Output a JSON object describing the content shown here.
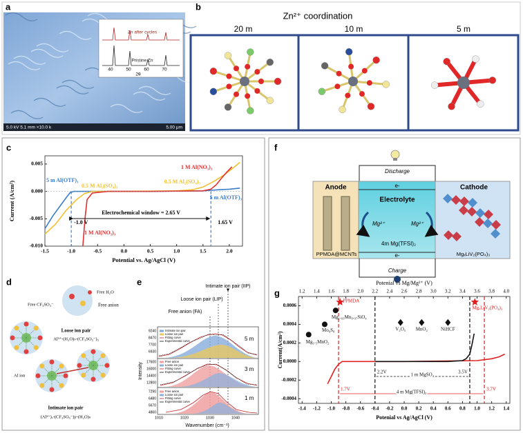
{
  "panel_labels": [
    "a",
    "b",
    "c",
    "d",
    "e",
    "f",
    "g"
  ],
  "panel_a": {
    "info_bar": "5.0 kV 5.1 mm ×10.0 k",
    "scale_bar": "5.00 μm",
    "inset_labels": [
      "Zn after cycles",
      "Pristine Zn"
    ],
    "inset_xticks": [
      "40",
      "50",
      "60",
      "70"
    ],
    "inset_xlabel": "2θ"
  },
  "panel_b": {
    "title": "Zn²⁺ coordination",
    "columns": [
      "20 m",
      "10 m",
      "5 m"
    ]
  },
  "panel_d": {
    "free_h2o": "Free H₂O",
    "free_anion_label": "Free CF₃SO₃⁻",
    "free_anion": "Free anion",
    "loose_title": "Loose ion pair",
    "loose_formula": "Al³⁺-(H₂O)ₙ-(CF₃SO₃⁻)₃",
    "al_ion": "Al ion",
    "intimate_title": "Intimate ion pair",
    "intimate_formula": "(Al³⁺)ₓ-(CF₃SO₃⁻)y-(H₂O)ₙ"
  },
  "panel_e": {
    "peaks": [
      "Intimate ion pair (IIP)",
      "Loose ion pair (LIP)",
      "Free anion (FA)"
    ],
    "ylabel": "Intensity",
    "xlabel": "Wavenumber (cm⁻¹)",
    "xticks": [
      "1010",
      "1020",
      "1030",
      "1040"
    ],
    "subplots": [
      {
        "label": "5 m",
        "yticks": [
          "9240",
          "8470",
          "7700",
          "6930"
        ],
        "legend": [
          "Intimate ion pair",
          "Loose ion pair",
          "Fitting curve",
          "Experimental curve"
        ]
      },
      {
        "label": "3 m",
        "yticks": [
          "17600",
          "16000",
          "14400",
          "12800"
        ],
        "legend": [
          "Free anion",
          "Loose ion pair",
          "Fitting curve",
          "Experimental curve"
        ]
      },
      {
        "label": "1 m",
        "yticks": [
          "7290",
          "6480",
          "5670",
          "4860"
        ],
        "legend": [
          "Free anion",
          "Loose ion pair",
          "Fitting curve",
          "Experimental curve"
        ]
      }
    ]
  },
  "panel_f": {
    "discharge": "Discharge",
    "electron_top": "e-",
    "anode": "Anode",
    "electrolyte": "Electrolyte",
    "cathode": "Cathode",
    "ion_left": "Mg²⁺",
    "ion_right": "Mg²⁺",
    "electrolyte_name": "4m Mg(TFSI)₂",
    "anode_material": "PPMDA@MCNTs",
    "cathode_material": "MgₓLiV₂(PO₄)₃",
    "electron_bottom": "e-",
    "charge": "Charge"
  },
  "chart_data": [
    {
      "type": "line",
      "xlabel": "Potential vs. Ag/AgCl (V)",
      "ylabel": "Current (A/cm²)",
      "xlim": [
        -1.5,
        2.25
      ],
      "ylim": [
        -0.01,
        0.0065
      ],
      "xticks": [
        {
          "value": -1.5,
          "label": "-1.5"
        },
        {
          "value": -1.0,
          "label": "-1.0"
        },
        -0.5,
        {
          "value": 0,
          "label": "0.0"
        },
        0.5,
        {
          "value": 1.0,
          "label": "1.0"
        },
        1.5,
        {
          "value": 2.0,
          "label": "2.0"
        }
      ],
      "yticks": [
        0.005,
        {
          "value": 0,
          "label": "0.000"
        },
        -0.005,
        {
          "value": -0.01,
          "label": "-0.010"
        }
      ],
      "series": [
        {
          "name": "5 m Al(OTF)₃",
          "color": "#3a7cc9",
          "x": [
            -1.5,
            -1.35,
            -1.2,
            -1.1,
            -1.02,
            -0.95,
            -0.5,
            0.5,
            1.5,
            1.65,
            1.8,
            2.0,
            2.2
          ],
          "values": [
            -0.0068,
            -0.0045,
            -0.0025,
            -0.0012,
            -0.0002,
            0,
            0,
            0,
            0.0001,
            0.0002,
            0.0003,
            0.0004,
            0.0006
          ]
        },
        {
          "name": "0.5 M Al₂(SO₄)₃",
          "color": "#f0c030",
          "x": [
            -1.5,
            -1.3,
            -1.1,
            -0.9,
            -0.75,
            -0.6,
            0,
            1.0,
            1.3,
            1.5,
            1.7,
            1.9,
            2.1,
            2.2
          ],
          "values": [
            -0.0078,
            -0.006,
            -0.0035,
            -0.0015,
            -0.0004,
            0,
            0,
            0.0001,
            0.0003,
            0.0008,
            0.0018,
            0.003,
            0.0045,
            0.0053
          ]
        },
        {
          "name": "1 M Al(NO₃)₃",
          "color": "#e03030",
          "x": [
            -0.78,
            -0.74,
            -0.7,
            -0.6,
            -0.3,
            0.5,
            1.5,
            1.65,
            1.75,
            1.85,
            1.95,
            2.05
          ],
          "values": [
            -0.01,
            -0.005,
            -0.0015,
            -0.0003,
            0,
            0,
            0.0001,
            0.0004,
            0.0012,
            0.0024,
            0.0035,
            0.0045
          ]
        }
      ],
      "vlines": [
        {
          "x": -1.0,
          "label": "-1.0 V"
        },
        {
          "x": 1.65,
          "label": "1.65 V"
        }
      ],
      "annotation": "Electrochemical window = 2.65 V"
    },
    {
      "type": "line",
      "xlabel": "Potenial vs Ag/AgCl (V)",
      "x2label": "Potenial vs Mg/Mg²⁺ (V)",
      "ylabel": "Current(A/cm²)",
      "xlim": [
        -1.45,
        1.45
      ],
      "x2lim": [
        1.15,
        4.05
      ],
      "ylim": [
        -0.00045,
        0.0007
      ],
      "xticks": [
        -1.4,
        -1.2,
        {
          "value": -1.0,
          "label": "-1.0"
        },
        -0.8,
        -0.6,
        -0.4,
        -0.2,
        {
          "value": 0,
          "label": "0.0"
        },
        0.2,
        0.4,
        0.6,
        0.8,
        {
          "value": 1.0,
          "label": "1.0"
        },
        1.2,
        1.4
      ],
      "x2ticks": [
        1.2,
        1.4,
        1.6,
        1.8,
        {
          "value": 2.0,
          "label": "2.0"
        },
        2.2,
        2.4,
        2.6,
        2.8,
        {
          "value": 3.0,
          "label": "3.0"
        },
        3.2,
        3.4,
        3.6,
        3.8,
        {
          "value": 4.0,
          "label": "4.0"
        }
      ],
      "yticks": [
        0.0006,
        0.0004,
        0.0002,
        {
          "value": 0,
          "label": "0.0000"
        },
        -0.0002,
        -0.0004
      ],
      "series": [
        {
          "name": "4 m Mg(TFSI)₂",
          "color": "#e02020",
          "x": [
            -1.05,
            -1.0,
            -0.95,
            -0.9,
            -0.85,
            0,
            1.0,
            1.1,
            1.2,
            1.3,
            1.38
          ],
          "values": [
            -0.00024,
            -0.00016,
            -8e-05,
            -3e-05,
            0,
            0,
            1e-05,
            2e-05,
            3e-05,
            5e-05,
            8e-05
          ]
        },
        {
          "name": "1 m MgSO₄",
          "color": "#111111",
          "x": [
            -0.4,
            0,
            0.6,
            0.8,
            0.85,
            0.9,
            0.93,
            0.96
          ],
          "values": [
            0,
            0,
            0,
            1e-05,
            3e-05,
            8e-05,
            0.00018,
            0.0003
          ]
        }
      ],
      "vlines": [
        {
          "x": 2.2,
          "label": "2.2V",
          "color": "#111111"
        },
        {
          "x": 3.5,
          "label": "3.5V",
          "color": "#111111"
        },
        {
          "x": 1.7,
          "label": "1.7V",
          "color": "#e02020"
        },
        {
          "x": 3.7,
          "label": "3.7V",
          "color": "#e02020"
        }
      ],
      "points": [
        {
          "label": "PPMDA",
          "x": 1.72,
          "y": 0.00064,
          "marker": "star",
          "color": "#e02020"
        },
        {
          "label": "Mg₁.₀₃Mn₀.₉₇SiO₄",
          "x": 1.66,
          "y": 0.00055,
          "marker": "circle",
          "color": "#111111"
        },
        {
          "label": "Mo₆S₈",
          "x": 1.51,
          "y": 0.0004,
          "marker": "circle",
          "color": "#111111"
        },
        {
          "label": "Mg₁.₅MnO₂",
          "x": 1.29,
          "y": 0.00029,
          "marker": "circle",
          "color": "#111111"
        },
        {
          "label": "V₂O₅",
          "x": 2.55,
          "y": 0.00042,
          "marker": "diamond",
          "color": "#111111"
        },
        {
          "label": "MnO₂",
          "x": 2.84,
          "y": 0.00042,
          "marker": "diamond",
          "color": "#111111"
        },
        {
          "label": "NiHCF",
          "x": 3.2,
          "y": 0.00042,
          "marker": "diamond",
          "color": "#111111"
        },
        {
          "label": "MgₓLiV₂(PO₄)₃",
          "x": 3.57,
          "y": 0.00064,
          "marker": "star",
          "color": "#e02020"
        }
      ]
    }
  ]
}
